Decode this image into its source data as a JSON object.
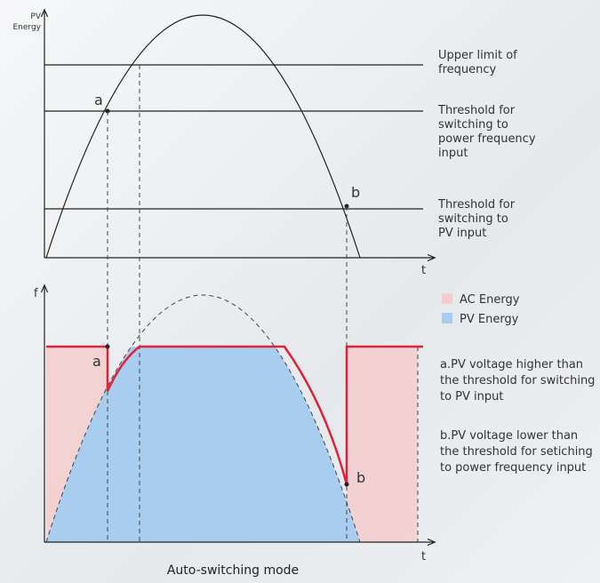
{
  "top_chart": {
    "y_label": [
      "PV",
      "Energy"
    ],
    "x_label": "t",
    "point_a": "a",
    "point_b": "b",
    "lines": [
      {
        "label": [
          "Upper limit of",
          "frequency"
        ]
      },
      {
        "label": [
          "Threshold for",
          "switching to",
          "power frequency",
          "input"
        ]
      },
      {
        "label": [
          "Threshold for",
          "switching to",
          "PV input"
        ]
      }
    ]
  },
  "bottom_chart": {
    "y_label": "f",
    "x_label": "t",
    "point_a": "a",
    "point_b": "b",
    "legend": [
      {
        "label": "AC Energy",
        "color": "#f4cccc"
      },
      {
        "label": "PV Energy",
        "color": "#a8cdee"
      }
    ],
    "notes": [
      [
        "a.PV voltage higher than",
        "the threshold for switching",
        "to PV input"
      ],
      [
        "b.PV voltage lower than",
        "the threshold for setiching",
        "to power frequency input"
      ]
    ]
  },
  "caption": "Auto-switching mode"
}
